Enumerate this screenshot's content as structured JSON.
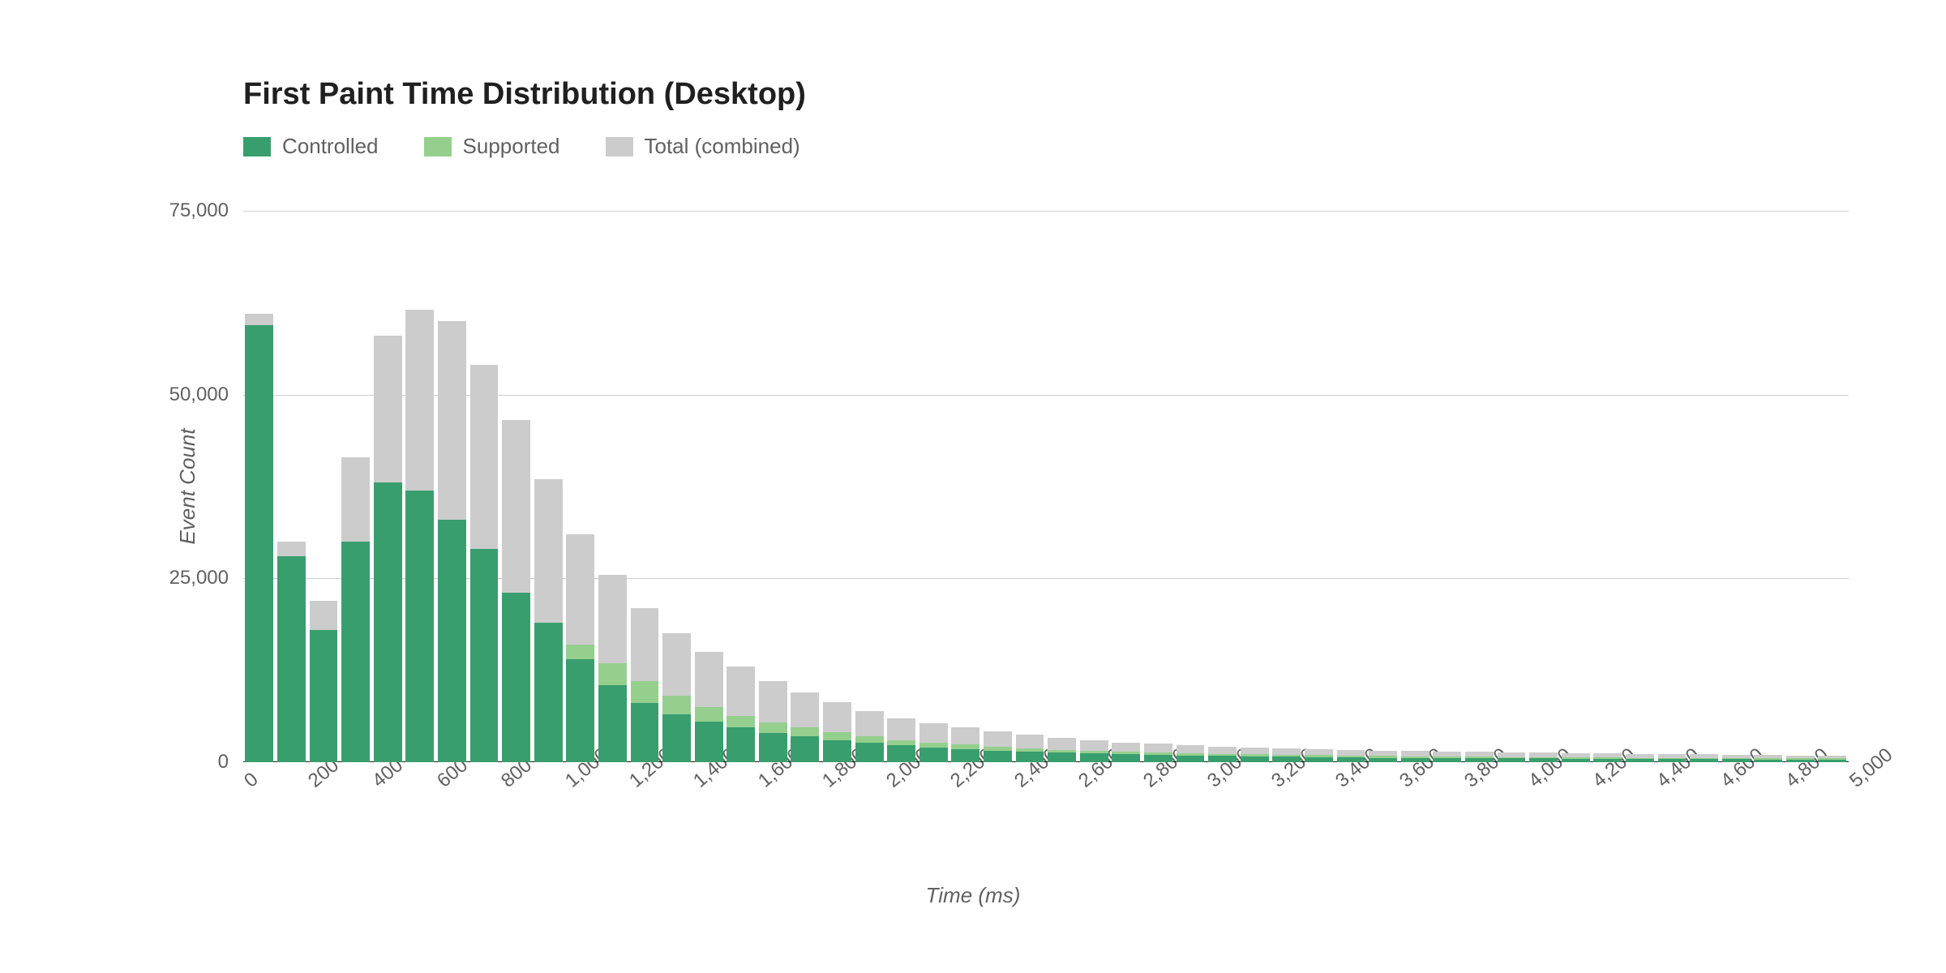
{
  "chart": {
    "type": "histogram",
    "title": "First Paint Time Distribution (Desktop)",
    "x_axis_title": "Time (ms)",
    "y_axis_title": "Event Count",
    "background_color": "#ffffff",
    "grid_color": "#d0d0d0",
    "baseline_color": "#202020",
    "title_fontsize_pt": 28,
    "axis_title_fontsize_pt": 20,
    "tick_fontsize_pt": 18,
    "legend_fontsize_pt": 20,
    "x_tick_rotation_deg": -40,
    "bar_gap_ratio": 0.12,
    "ylim": [
      0,
      75000
    ],
    "y_ticks": [
      0,
      25000,
      50000,
      75000
    ],
    "y_tick_labels": [
      "0",
      "25,000",
      "50,000",
      "75,000"
    ],
    "x_bins": [
      0,
      100,
      200,
      300,
      400,
      500,
      600,
      700,
      800,
      900,
      1000,
      1100,
      1200,
      1300,
      1400,
      1500,
      1600,
      1700,
      1800,
      1900,
      2000,
      2100,
      2200,
      2300,
      2400,
      2500,
      2600,
      2700,
      2800,
      2900,
      3000,
      3100,
      3200,
      3300,
      3400,
      3500,
      3600,
      3700,
      3800,
      3900,
      4000,
      4100,
      4200,
      4300,
      4400,
      4500,
      4600,
      4700,
      4800,
      4900,
      5000
    ],
    "x_tick_positions": [
      0,
      200,
      400,
      600,
      800,
      1000,
      1200,
      1400,
      1600,
      1800,
      2000,
      2200,
      2400,
      2600,
      2800,
      3000,
      3200,
      3400,
      3600,
      3800,
      4000,
      4200,
      4400,
      4600,
      4800,
      5000
    ],
    "x_tick_labels": [
      "0",
      "200",
      "400",
      "600",
      "800",
      "1,000",
      "1,200",
      "1,400",
      "1,600",
      "1,800",
      "2,000",
      "2,200",
      "2,400",
      "2,600",
      "2,800",
      "3,000",
      "3,200",
      "3,400",
      "3,600",
      "3,800",
      "4,000",
      "4,200",
      "4,400",
      "4,600",
      "4,800",
      "5,000"
    ],
    "series": [
      {
        "name": "Total (combined)",
        "legend_label": "Total (combined)",
        "color": "#cccccc",
        "z": 1,
        "values": [
          61000,
          30000,
          22000,
          41500,
          58000,
          61500,
          60000,
          54000,
          46500,
          38500,
          31000,
          25500,
          21000,
          17500,
          15000,
          13000,
          11000,
          9500,
          8200,
          7000,
          6000,
          5300,
          4700,
          4200,
          3700,
          3300,
          3000,
          2700,
          2500,
          2300,
          2100,
          2000,
          1900,
          1800,
          1700,
          1600,
          1500,
          1450,
          1400,
          1350,
          1300,
          1250,
          1200,
          1150,
          1100,
          1050,
          1000,
          950,
          900,
          900
        ]
      },
      {
        "name": "Controlled",
        "legend_label": "Controlled",
        "color": "#399e6e",
        "z": 3,
        "values": [
          59500,
          28000,
          18000,
          30000,
          38000,
          37000,
          33000,
          29000,
          23000,
          19000,
          14000,
          10500,
          8000,
          6500,
          5500,
          4700,
          4000,
          3500,
          3000,
          2700,
          2300,
          2000,
          1800,
          1600,
          1400,
          1300,
          1200,
          1100,
          1000,
          900,
          850,
          800,
          750,
          700,
          650,
          600,
          580,
          560,
          540,
          520,
          500,
          480,
          460,
          440,
          420,
          400,
          390,
          380,
          370,
          370
        ]
      },
      {
        "name": "Supported",
        "legend_label": "Supported",
        "color": "#94cf8e",
        "z": 2,
        "values": [
          1500,
          2500,
          4500,
          11500,
          20500,
          25000,
          27500,
          25500,
          22000,
          19000,
          16000,
          13500,
          11000,
          9000,
          7500,
          6300,
          5400,
          4700,
          4100,
          3500,
          3000,
          2700,
          2400,
          2150,
          1900,
          1700,
          1550,
          1400,
          1300,
          1200,
          1100,
          1050,
          1000,
          950,
          900,
          850,
          800,
          770,
          740,
          710,
          680,
          650,
          620,
          600,
          580,
          560,
          540,
          520,
          500,
          500
        ]
      }
    ],
    "legend_order": [
      "Controlled",
      "Supported",
      "Total (combined)"
    ]
  }
}
